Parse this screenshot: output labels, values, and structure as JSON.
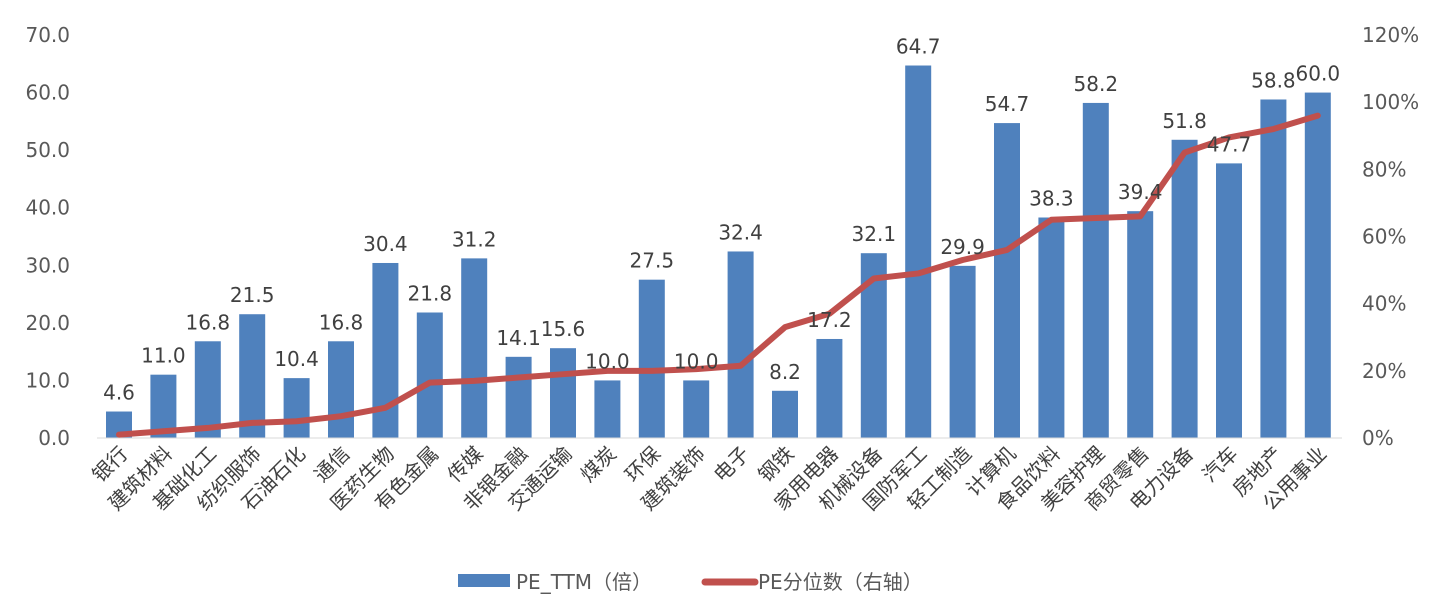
{
  "chart_data": {
    "type": "bar",
    "title": "",
    "categories": [
      "银行",
      "建筑材料",
      "基础化工",
      "纺织服饰",
      "石油石化",
      "通信",
      "医药生物",
      "有色金属",
      "传媒",
      "非银金融",
      "交通运输",
      "煤炭",
      "环保",
      "建筑装饰",
      "电子",
      "钢铁",
      "家用电器",
      "机械设备",
      "国防军工",
      "轻工制造",
      "计算机",
      "食品饮料",
      "美容护理",
      "商贸零售",
      "电力设备",
      "汽车",
      "房地产",
      "公用事业"
    ],
    "series": [
      {
        "name": "PE_TTM（倍）",
        "type": "bar",
        "axis": "left",
        "color": "#4f81bd",
        "values": [
          4.6,
          11.0,
          16.8,
          21.5,
          10.4,
          16.8,
          30.4,
          21.8,
          31.2,
          14.1,
          15.6,
          10.0,
          27.5,
          10.0,
          32.4,
          8.2,
          17.2,
          32.1,
          64.7,
          29.9,
          54.7,
          38.3,
          58.2,
          39.4,
          51.8,
          47.7,
          58.8,
          60.0
        ]
      },
      {
        "name": "PE分位数（右轴）",
        "type": "line",
        "axis": "right",
        "color": "#c0504d",
        "values": [
          1,
          2,
          3,
          4.5,
          5,
          6.5,
          9,
          16.5,
          17,
          18,
          19,
          20,
          20,
          20.5,
          21.5,
          33,
          37,
          47.5,
          49,
          53,
          56,
          65,
          65.5,
          66,
          85,
          89.5,
          92,
          96
        ]
      }
    ],
    "left_axis": {
      "ylim": [
        0,
        70
      ],
      "ticks": [
        "0.0",
        "10.0",
        "20.0",
        "30.0",
        "40.0",
        "50.0",
        "60.0",
        "70.0"
      ]
    },
    "right_axis": {
      "ylim": [
        0,
        120
      ],
      "ticks": [
        "0%",
        "20%",
        "40%",
        "60%",
        "80%",
        "100%",
        "120%"
      ]
    },
    "legend_position": "bottom",
    "grid": false
  }
}
